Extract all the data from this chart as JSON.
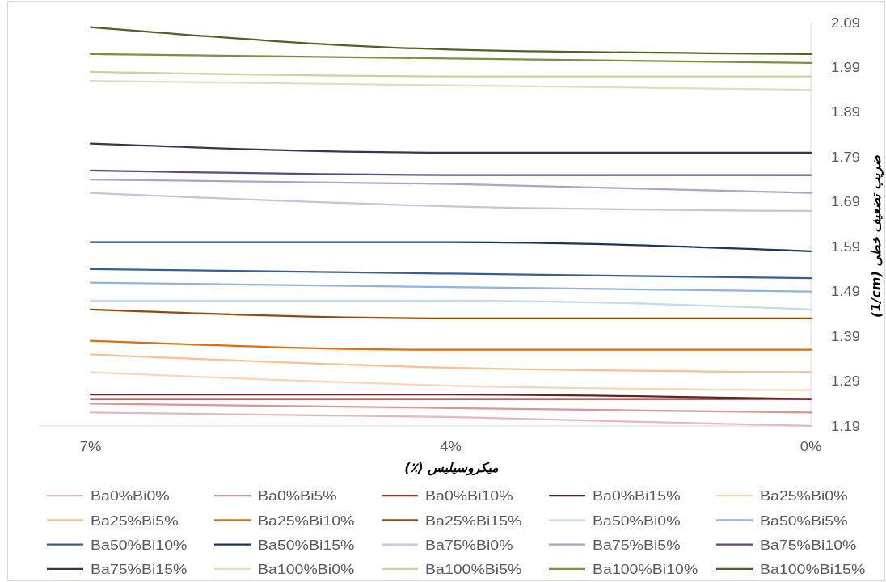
{
  "chart_data": {
    "type": "line",
    "xlabel": "میکروسیلیس (٪)",
    "ylabel": "ضریب تضعیف خطی (1/cm)",
    "categories": [
      "7%",
      "4%",
      "0%"
    ],
    "ylim": [
      1.19,
      2.09
    ],
    "yticks": [
      1.19,
      1.29,
      1.39,
      1.49,
      1.59,
      1.69,
      1.79,
      1.89,
      1.99,
      2.09
    ],
    "legend": "bottom",
    "line_style": "solid",
    "series": [
      {
        "name": "Ba0%Bi0%",
        "color": "#e6b9b8",
        "values": [
          1.22,
          1.21,
          1.19
        ]
      },
      {
        "name": "Ba0%Bi5%",
        "color": "#d99694",
        "values": [
          1.24,
          1.23,
          1.22
        ]
      },
      {
        "name": "Ba0%Bi10%",
        "color": "#953735",
        "values": [
          1.25,
          1.25,
          1.25
        ]
      },
      {
        "name": "Ba0%Bi15%",
        "color": "#632523",
        "values": [
          1.26,
          1.26,
          1.25
        ]
      },
      {
        "name": "Ba25%Bi0%",
        "color": "#fcd5b5",
        "values": [
          1.31,
          1.28,
          1.27
        ]
      },
      {
        "name": "Ba25%Bi5%",
        "color": "#fac090",
        "values": [
          1.35,
          1.32,
          1.31
        ]
      },
      {
        "name": "Ba25%Bi10%",
        "color": "#e46c0a",
        "values": [
          1.38,
          1.36,
          1.36
        ]
      },
      {
        "name": "Ba25%Bi15%",
        "color": "#984807",
        "values": [
          1.45,
          1.43,
          1.43
        ]
      },
      {
        "name": "Ba50%Bi0%",
        "color": "#c6d9f1",
        "values": [
          1.47,
          1.47,
          1.45
        ]
      },
      {
        "name": "Ba50%Bi5%",
        "color": "#8eb4e3",
        "values": [
          1.51,
          1.5,
          1.49
        ]
      },
      {
        "name": "Ba50%Bi10%",
        "color": "#376092",
        "values": [
          1.54,
          1.53,
          1.52
        ]
      },
      {
        "name": "Ba50%Bi15%",
        "color": "#17375e",
        "values": [
          1.6,
          1.6,
          1.58
        ]
      },
      {
        "name": "Ba75%Bi0%",
        "color": "#ccc1da",
        "values": [
          1.71,
          1.68,
          1.67
        ]
      },
      {
        "name": "Ba75%Bi5%",
        "color": "#b3a2c7",
        "values": [
          1.74,
          1.73,
          1.71
        ]
      },
      {
        "name": "Ba75%Bi10%",
        "color": "#604a7b",
        "values": [
          1.76,
          1.75,
          1.75
        ]
      },
      {
        "name": "Ba75%Bi15%",
        "color": "#403152",
        "values": [
          1.82,
          1.8,
          1.8
        ]
      },
      {
        "name": "Ba100%Bi0%",
        "color": "#d7e4bd",
        "values": [
          1.96,
          1.95,
          1.94
        ]
      },
      {
        "name": "Ba100%Bi5%",
        "color": "#c3d69b",
        "values": [
          1.98,
          1.97,
          1.97
        ]
      },
      {
        "name": "Ba100%Bi10%",
        "color": "#77933c",
        "values": [
          2.02,
          2.01,
          2.0
        ]
      },
      {
        "name": "Ba100%Bi15%",
        "color": "#4f6228",
        "values": [
          2.08,
          2.03,
          2.02
        ]
      }
    ]
  }
}
